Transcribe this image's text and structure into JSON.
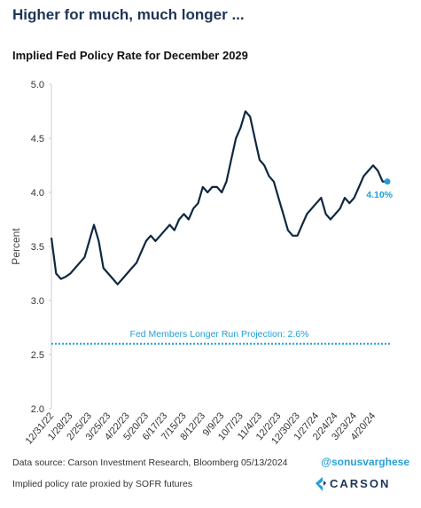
{
  "header": {
    "title": "Higher for much, much longer ..."
  },
  "chart_data": {
    "type": "line",
    "title": "Implied Fed Policy Rate for December 2029",
    "y_label": "Percent",
    "categories": [
      "12/31/22",
      null,
      null,
      null,
      "1/28/23",
      null,
      null,
      null,
      "2/25/23",
      null,
      null,
      null,
      "3/25/23",
      null,
      null,
      null,
      "4/22/23",
      null,
      null,
      null,
      "5/20/23",
      null,
      null,
      null,
      "6/17/23",
      null,
      null,
      null,
      "7/15/23",
      null,
      null,
      null,
      "8/12/23",
      null,
      null,
      null,
      "9/9/23",
      null,
      null,
      null,
      "10/7/23",
      null,
      null,
      null,
      "11/4/23",
      null,
      null,
      null,
      "12/2/23",
      null,
      null,
      null,
      "12/30/23",
      null,
      null,
      null,
      "1/27/24",
      null,
      null,
      null,
      "2/24/24",
      null,
      null,
      null,
      "3/23/24",
      null,
      null,
      null,
      "4/20/24",
      null,
      null,
      null
    ],
    "series": [
      {
        "name": "Implied Fed Policy Rate",
        "color": "#0e2841",
        "values": [
          3.58,
          3.25,
          3.2,
          3.22,
          3.25,
          3.3,
          3.35,
          3.4,
          3.55,
          3.7,
          3.55,
          3.3,
          3.25,
          3.2,
          3.15,
          3.2,
          3.25,
          3.3,
          3.35,
          3.45,
          3.55,
          3.6,
          3.55,
          3.6,
          3.65,
          3.7,
          3.65,
          3.75,
          3.8,
          3.75,
          3.85,
          3.9,
          4.05,
          4.0,
          4.05,
          4.05,
          4.0,
          4.1,
          4.3,
          4.5,
          4.6,
          4.75,
          4.7,
          4.5,
          4.3,
          4.25,
          4.15,
          4.1,
          3.95,
          3.8,
          3.65,
          3.6,
          3.6,
          3.7,
          3.8,
          3.85,
          3.9,
          3.95,
          3.8,
          3.75,
          3.8,
          3.85,
          3.95,
          3.9,
          3.95,
          4.05,
          4.15,
          4.2,
          4.25,
          4.2,
          4.1,
          4.1
        ],
        "value_labels": [
          null,
          null,
          null,
          null,
          null,
          null,
          null,
          null,
          null,
          null,
          null,
          null,
          null,
          null,
          null,
          null,
          null,
          null,
          null,
          null,
          null,
          null,
          null,
          null,
          null,
          null,
          null,
          null,
          null,
          null,
          null,
          null,
          null,
          null,
          null,
          null,
          null,
          null,
          null,
          null,
          null,
          null,
          null,
          null,
          null,
          null,
          null,
          null,
          null,
          null,
          null,
          null,
          null,
          null,
          null,
          null,
          null,
          null,
          null,
          null,
          null,
          null,
          null,
          null,
          null,
          null,
          null,
          null,
          null,
          null,
          null,
          "4.10%"
        ],
        "label_color": "#1fa0dc"
      }
    ],
    "reference_line": {
      "value": 2.6,
      "label": "Fed Members Longer Run Projection: 2.6%",
      "color": "#1fa0dc"
    },
    "ylim": [
      2.0,
      5.0
    ],
    "yticks": [
      {
        "value": 2.0,
        "label": "2.0"
      },
      2.5,
      {
        "value": 3.0,
        "label": "3.0"
      },
      3.5,
      {
        "value": 4.0,
        "label": "4.0"
      },
      4.5,
      {
        "value": 5.0,
        "label": "5.0"
      }
    ],
    "grid": false
  },
  "footer": {
    "source": "Data source: Carson Investment Research, Bloomberg   05/13/2024",
    "handle": "@sonusvarghese",
    "note": "Implied policy rate proxied by SOFR futures",
    "logo": "CARSON"
  }
}
